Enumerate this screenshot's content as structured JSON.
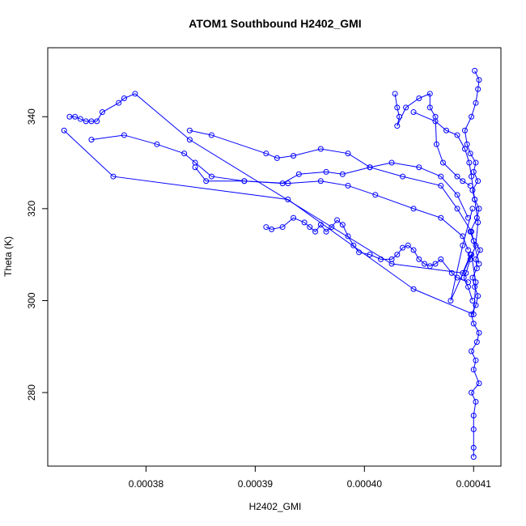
{
  "chart_data": {
    "type": "scatter",
    "title": "ATOM1 Southbound H2402_GMI",
    "xlabel": "H2402_GMI",
    "ylabel": "Theta (K)",
    "xlim": [
      0.000371,
      0.0004125
    ],
    "ylim": [
      264,
      355
    ],
    "x_ticks": [
      0.00038,
      0.00039,
      0.0004,
      0.00041
    ],
    "x_tick_labels": [
      "0.00038",
      "0.00039",
      "0.00040",
      "0.00041"
    ],
    "y_ticks": [
      280,
      300,
      320,
      340
    ],
    "y_tick_labels": [
      "280",
      "300",
      "320",
      "340"
    ],
    "grid": false,
    "legend": "none",
    "style": "points connected by lines (type='o')",
    "color": "#0000ff",
    "series": [
      {
        "x": [
          0.00041,
          0.00041,
          0.00041,
          0.00041,
          0.0004102,
          0.0004098,
          0.0004105,
          0.00041,
          0.0004102,
          0.0004098,
          0.0004103,
          0.0004105,
          0.00041,
          0.0004098,
          0.0004102,
          0.0004104,
          0.0004101,
          0.0004099,
          0.0004103,
          0.0004102,
          0.0004106,
          0.00041,
          0.0004097,
          0.0004103,
          0.0004105,
          0.0004101,
          0.0004099,
          0.0004104,
          0.00041,
          0.0004102,
          0.0004097,
          0.0004094,
          0.0004092,
          0.0004098,
          0.0004102,
          0.0004104,
          0.0004105,
          0.0004101
        ],
        "y": [
          266,
          268,
          272,
          275,
          278,
          280,
          282,
          285,
          287,
          289,
          291,
          293,
          295,
          297,
          299,
          301,
          303,
          305,
          307,
          309,
          311,
          313,
          315,
          318,
          320,
          322,
          324,
          326,
          328,
          330,
          332,
          334,
          337,
          340,
          343,
          346,
          348,
          350
        ]
      },
      {
        "x": [
          0.0003725,
          0.000377,
          0.000393,
          0.0004045,
          0.00041,
          0.0004102,
          0.0004098,
          0.0004079,
          0.000409,
          0.0004099
        ],
        "y": [
          337,
          327,
          322,
          302.5,
          297,
          304,
          310,
          300,
          312,
          320
        ]
      },
      {
        "x": [
          0.000373,
          0.0003735,
          0.000374,
          0.0003745,
          0.000375,
          0.0003755,
          0.000376,
          0.0003775,
          0.000378,
          0.000379,
          0.000384,
          0.0004025,
          0.000409,
          0.0004097
        ],
        "y": [
          340,
          340,
          339.5,
          339,
          339,
          339,
          341,
          343,
          344,
          345,
          335,
          308,
          306,
          310
        ]
      },
      {
        "x": [
          0.000375,
          0.000378,
          0.000381,
          0.0003835,
          0.0003845,
          0.000386,
          0.000389,
          0.000393,
          0.000396,
          0.0003985,
          0.000401,
          0.0004045,
          0.000407,
          0.000409,
          0.0004095
        ],
        "y": [
          335,
          336,
          334,
          332,
          330,
          327,
          326,
          325.5,
          326,
          325,
          323,
          320,
          318,
          314,
          311
        ]
      },
      {
        "x": [
          0.000384,
          0.000386,
          0.000391,
          0.000392,
          0.0003935,
          0.000396,
          0.0003985,
          0.0004005,
          0.0004035,
          0.000407,
          0.0004085,
          0.0004098,
          0.0004105
        ],
        "y": [
          337,
          336,
          332,
          331,
          331.5,
          333,
          332,
          329,
          327,
          325,
          320,
          315,
          308
        ]
      },
      {
        "x": [
          0.0003845,
          0.0003855,
          0.000389,
          0.0003925,
          0.000394,
          0.0003965,
          0.000398,
          0.0004005,
          0.0004025,
          0.000405,
          0.000407,
          0.0004085,
          0.0004095
        ],
        "y": [
          329,
          326,
          326,
          325.5,
          327.5,
          328,
          327.5,
          329,
          330,
          329,
          327,
          323,
          318
        ]
      },
      {
        "x": [
          0.000391,
          0.0003915,
          0.0003925,
          0.0003935,
          0.0003945,
          0.000395,
          0.0003955,
          0.000396,
          0.0003965,
          0.000397,
          0.0003975,
          0.000398,
          0.0003985,
          0.000399,
          0.0003995,
          0.0004005,
          0.0004015,
          0.0004025,
          0.000403,
          0.0004035,
          0.000404,
          0.0004045,
          0.000405,
          0.0004055,
          0.000406,
          0.0004065,
          0.000407,
          0.000408,
          0.0004085,
          0.0004095
        ],
        "y": [
          316,
          315.5,
          316,
          318,
          317,
          316,
          315,
          316.5,
          315,
          316,
          317.5,
          316.5,
          314,
          312,
          310.5,
          310,
          309,
          309,
          310,
          311.5,
          312,
          311,
          309,
          308,
          307.5,
          308,
          309,
          306,
          305,
          304
        ]
      },
      {
        "x": [
          0.0004028,
          0.000403,
          0.0004032,
          0.000403,
          0.0004038,
          0.000405,
          0.000406,
          0.000406,
          0.0004065,
          0.0004066,
          0.0004072,
          0.0004085,
          0.000409,
          0.0004097
        ],
        "y": [
          345,
          342,
          340,
          338,
          342,
          344,
          345,
          342,
          340,
          334,
          330,
          327,
          326,
          325
        ]
      },
      {
        "x": [
          0.0004045,
          0.0004065,
          0.0004075,
          0.0004085,
          0.0004092,
          0.0004096,
          0.0004098,
          0.0004101,
          0.0004104,
          0.0004102,
          0.0004097,
          0.0004093,
          0.0004091,
          0.0004095,
          0.0004099
        ],
        "y": [
          341,
          339,
          337,
          336,
          333,
          330,
          327,
          322,
          317,
          312,
          309,
          306,
          305,
          303,
          300
        ]
      }
    ]
  }
}
